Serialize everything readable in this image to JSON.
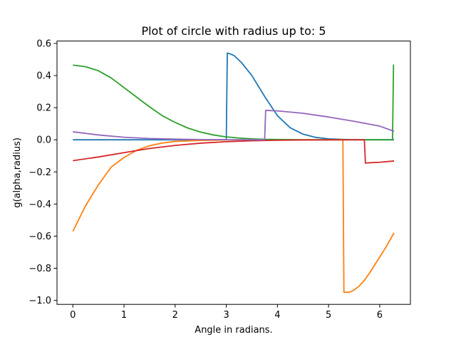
{
  "chart_data": {
    "type": "line",
    "title": "Plot of circle with radius up to: 5",
    "xlabel": "Angle in radians.",
    "ylabel": "g(alpha,radius)",
    "xlim": [
      -0.31,
      6.6
    ],
    "ylim": [
      -1.025,
      0.615
    ],
    "xticks": [
      0,
      1,
      2,
      3,
      4,
      5,
      6
    ],
    "yticks": [
      -1.0,
      -0.8,
      -0.6,
      -0.4,
      -0.2,
      0.0,
      0.2,
      0.4,
      0.6
    ],
    "xtick_labels": [
      "0",
      "1",
      "2",
      "3",
      "4",
      "5",
      "6"
    ],
    "ytick_labels": [
      "−1.0",
      "−0.8",
      "−0.6",
      "−0.4",
      "−0.2",
      "0.0",
      "0.2",
      "0.4",
      "0.6"
    ],
    "grid": false,
    "series": [
      {
        "color": "#1f77b4",
        "x": [
          0,
          1,
          2,
          3.0,
          3.02,
          3.05,
          3.15,
          3.3,
          3.5,
          3.75,
          4.0,
          4.25,
          4.5,
          4.75,
          5.0,
          5.3,
          5.6,
          5.8,
          6.28
        ],
        "y": [
          0,
          0,
          0,
          0,
          0.54,
          0.538,
          0.525,
          0.48,
          0.4,
          0.27,
          0.15,
          0.075,
          0.035,
          0.015,
          0.006,
          0.002,
          0.0,
          0.0,
          0.0
        ]
      },
      {
        "color": "#ff7f0e",
        "x": [
          0,
          0.25,
          0.5,
          0.75,
          1.0,
          1.25,
          1.5,
          1.75,
          2.0,
          2.5,
          3.0,
          3.5,
          4.0,
          4.5,
          5.0,
          5.28,
          5.3,
          5.4,
          5.5,
          5.6,
          5.7,
          5.8,
          5.9,
          6.0,
          6.1,
          6.2,
          6.28
        ],
        "y": [
          -0.57,
          -0.41,
          -0.28,
          -0.17,
          -0.11,
          -0.065,
          -0.037,
          -0.02,
          -0.01,
          -0.004,
          -0.001,
          0.0,
          0.0,
          0.0,
          0.0,
          0.0,
          -0.95,
          -0.95,
          -0.935,
          -0.91,
          -0.875,
          -0.83,
          -0.78,
          -0.73,
          -0.68,
          -0.625,
          -0.58
        ]
      },
      {
        "color": "#2ca02c",
        "x": [
          0,
          0.25,
          0.5,
          0.75,
          1.0,
          1.25,
          1.5,
          1.75,
          2.0,
          2.25,
          2.5,
          2.75,
          3.0,
          3.25,
          3.5,
          3.75,
          4.0,
          4.5,
          5.0,
          5.5,
          6.25,
          6.27,
          6.28
        ],
        "y": [
          0.465,
          0.455,
          0.43,
          0.385,
          0.325,
          0.265,
          0.205,
          0.15,
          0.108,
          0.073,
          0.048,
          0.03,
          0.018,
          0.011,
          0.006,
          0.003,
          0.002,
          0.0,
          0.0,
          0.0,
          0.0,
          0.465,
          0.465
        ]
      },
      {
        "color": "#d62728",
        "x": [
          0,
          0.5,
          1.0,
          1.5,
          2.0,
          2.5,
          3.0,
          3.5,
          4.0,
          4.5,
          5.0,
          5.5,
          5.7,
          5.72,
          5.8,
          6.0,
          6.28
        ],
        "y": [
          -0.13,
          -0.107,
          -0.08,
          -0.054,
          -0.035,
          -0.021,
          -0.012,
          -0.006,
          -0.003,
          -0.001,
          -0.0005,
          0.0,
          0.0,
          -0.145,
          -0.143,
          -0.14,
          -0.132
        ]
      },
      {
        "color": "#9467bd",
        "x": [
          0,
          0.5,
          1.0,
          1.5,
          2.0,
          2.5,
          3.0,
          3.5,
          3.75,
          3.77,
          4.0,
          4.5,
          5.0,
          5.5,
          6.0,
          6.28
        ],
        "y": [
          0.05,
          0.03,
          0.016,
          0.008,
          0.004,
          0.0015,
          0.0005,
          0.0,
          0.0,
          0.183,
          0.18,
          0.165,
          0.142,
          0.115,
          0.085,
          0.053
        ]
      }
    ]
  }
}
